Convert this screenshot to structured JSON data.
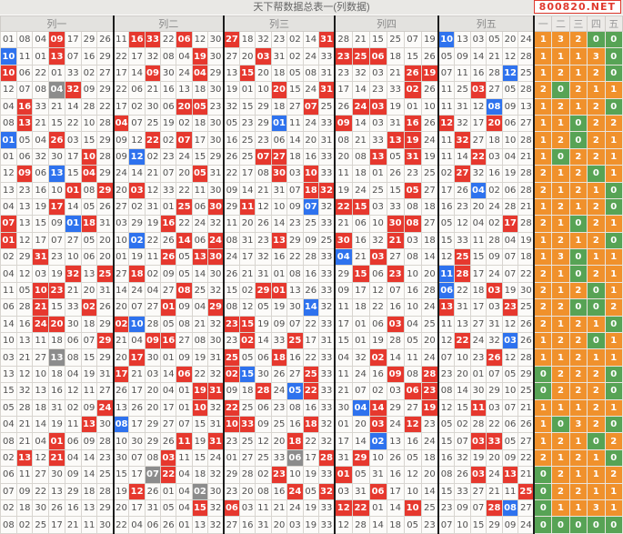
{
  "header": {
    "title": "天下帮数据总表一(列数据)",
    "badge": "800820.NET"
  },
  "column_groups": [
    "列一",
    "列二",
    "列三",
    "列四",
    "列五"
  ],
  "count_headers": [
    "一",
    "二",
    "三",
    "四",
    "五"
  ],
  "group_sizes": [
    7,
    7,
    7,
    6,
    6
  ],
  "legend": {
    "red_cell": "drawn red ball",
    "blue_cell": "drawn blue ball",
    "gray_cell": "number drawn as both red and blue ball",
    "orange_count": "non-zero column hit count",
    "green_count": "zero column hit count"
  },
  "colors": {
    "red": "#e6382e",
    "blue": "#2e72ee",
    "gray": "#8c8c8c",
    "orange": "#f0912c",
    "green": "#57a355",
    "badge_red": "#e03a2f"
  },
  "rows": [
    {
      "n": "01 08 04 09 17 29 26 11 16 33 22 06 12 30 27 18 32 23 02 14 31 28 21 15 25 07 19 10 13 03 05 20 24",
      "c": "wwwrwwwwrrwrwwrwwwwwrwwwwwwbwwwww",
      "t": [
        1,
        3,
        2,
        0,
        0
      ]
    },
    {
      "n": "10 11 01 13 07 16 29 22 17 32 08 04 19 30 27 20 03 31 02 24 33 23 25 06 18 15 26 05 09 14 21 12 28",
      "c": "bwwrwwwwwwwwrwwwrwwwwrrrwwwwwwwww",
      "t": [
        1,
        1,
        1,
        3,
        0
      ]
    },
    {
      "n": "10 06 22 01 33 02 27 17 14 09 30 24 04 29 13 15 20 18 05 08 31 23 32 03 21 26 19 07 11 16 28 12 25",
      "c": "rwwwwwwwwrwwrwwrwwwwwwwwwrrwwwwbw",
      "t": [
        1,
        2,
        1,
        2,
        0
      ]
    },
    {
      "n": "12 07 08 04 32 09 29 22 06 21 16 13 18 30 19 01 10 20 15 24 31 17 14 23 33 02 26 11 25 03 27 05 28",
      "c": "wwwgrwwwwwwwwwwwwrwwrwwwwrwwwrwww",
      "t": [
        2,
        0,
        2,
        1,
        1
      ]
    },
    {
      "n": "04 16 33 21 14 28 22 17 02 30 06 20 05 23 32 15 29 18 27 07 25 26 24 03 19 01 10 11 31 12 08 09 13",
      "c": "wrwwwwwwwwwrrwwwwwwrwwrrwwwwwwbww",
      "t": [
        1,
        2,
        1,
        2,
        0
      ]
    },
    {
      "n": "08 13 21 15 22 10 28 04 07 25 19 02 18 30 05 23 29 01 11 24 33 09 14 03 31 16 26 12 32 17 20 06 27",
      "c": "wrwwwwwrwwwwwwwwwbwwwrwwwrwrwwrww",
      "t": [
        1,
        1,
        0,
        2,
        2
      ]
    },
    {
      "n": "01 05 04 26 03 15 29 09 12 22 02 07 17 30 16 25 23 06 14 20 31 08 21 33 13 19 24 11 32 27 18 10 28",
      "c": "bwwrwwwwwrwrwwwwwwwwwwwwrrwwrwwww",
      "t": [
        1,
        2,
        0,
        2,
        1
      ]
    },
    {
      "n": "01 06 32 30 17 10 28 09 12 02 23 24 15 29 26 25 07 27 18 16 33 20 08 13 05 31 19 11 14 22 03 04 21",
      "c": "wwwwwrwwbwwwwwwwrrwwwwwrwrwwwrwww",
      "t": [
        1,
        0,
        2,
        2,
        1
      ]
    },
    {
      "n": "12 09 06 13 15 04 29 24 14 21 07 20 05 31 22 17 08 30 03 10 33 11 18 01 26 23 25 02 27 32 16 19 28",
      "c": "wrwbwrwwwwwwrwwwwrwrwwwwwwwwrwwww",
      "t": [
        2,
        1,
        2,
        0,
        1
      ]
    },
    {
      "n": "13 23 16 10 01 08 29 20 03 12 33 22 11 30 09 14 21 31 07 18 32 19 24 25 15 05 27 17 26 04 02 06 28",
      "c": "wwwwrwrwrwwwwwwwwwwrrwwwwrwwwbwww",
      "t": [
        2,
        1,
        2,
        1,
        0
      ]
    },
    {
      "n": "04 13 19 17 14 05 26 27 02 31 01 25 06 30 29 11 12 10 09 07 32 22 15 03 33 08 18 16 23 20 24 28 21",
      "c": "wwwrwwwwwwwrwrwrwwwbwrrwwwwwwwwww",
      "t": [
        1,
        2,
        1,
        2,
        0
      ]
    },
    {
      "n": "07 13 15 09 01 18 31 03 29 19 16 22 24 32 11 20 26 14 23 25 33 21 06 10 30 08 27 05 12 04 02 17 28",
      "c": "rwwwbrwwwwrwwwwwwwwwwwwwrrwwwwwrw",
      "t": [
        2,
        1,
        0,
        2,
        1
      ]
    },
    {
      "n": "01 12 17 07 27 05 20 10 02 22 26 14 06 24 08 31 23 13 29 09 25 30 16 32 21 03 18 15 33 11 28 04 19",
      "c": "rwwwwwwwbwwrwrwwwrwwwrwwrwwwwwwww",
      "t": [
        1,
        2,
        1,
        2,
        0
      ]
    },
    {
      "n": "02 29 31 23 10 06 20 01 19 11 26 05 13 30 24 17 32 16 22 28 33 04 21 03 27 08 14 12 25 15 09 07 18",
      "c": "wwrwwwwwwwrwrrwwwwwwwbwrwwwwrwwww",
      "t": [
        1,
        3,
        0,
        1,
        1
      ]
    },
    {
      "n": "04 12 03 19 32 13 25 27 18 02 09 05 14 30 26 21 31 01 08 16 33 29 15 06 23 10 20 11 28 17 24 07 22",
      "c": "wwwwrwrwrwwwwwwwwwwwwwrwrwwbrwwww",
      "t": [
        2,
        1,
        0,
        2,
        1
      ]
    },
    {
      "n": "11 05 10 23 21 20 31 14 24 04 27 08 25 32 15 02 29 01 13 26 33 09 17 12 07 16 28 06 22 18 03 19 30",
      "c": "wwrrwwwwwwwrwwwwrrwwwwwwwwwbwwrww",
      "t": [
        2,
        1,
        2,
        0,
        1
      ]
    },
    {
      "n": "06 28 21 15 33 02 26 20 07 27 01 09 04 29 08 12 05 19 30 14 32 11 18 22 16 10 24 13 31 17 03 23 25",
      "c": "wwrwwrwwwwrwwrwwwwwbwwwwwwwrwwwrw",
      "t": [
        2,
        2,
        0,
        0,
        2
      ]
    },
    {
      "n": "14 16 24 20 30 18 29 02 10 28 05 08 21 32 23 15 19 09 07 22 33 17 01 06 03 04 25 11 13 27 31 12 26",
      "c": "wwrrwwwrbwwwwwrrwwwwwwwwrwwwwwwww",
      "t": [
        2,
        1,
        2,
        1,
        0
      ]
    },
    {
      "n": "10 13 11 18 06 07 29 21 04 09 16 27 08 30 23 02 14 33 25 17 31 15 01 19 28 05 20 12 22 24 32 03 26",
      "c": "wwwwwwrwwrrwwwwrwwrwwwwwwwwwrwwbw",
      "t": [
        1,
        2,
        2,
        0,
        1
      ]
    },
    {
      "n": "03 21 27 13 08 15 29 20 17 30 01 09 19 31 25 05 06 18 16 22 33 04 32 02 14 11 24 07 10 23 26 12 28",
      "c": "wwwgwwwwrwwwwwrwwrwwwwwrwwwwwwrww",
      "t": [
        1,
        1,
        2,
        1,
        1
      ]
    },
    {
      "n": "13 12 10 18 04 19 31 17 21 03 14 06 22 32 02 15 30 26 27 25 33 11 24 16 09 08 28 23 20 01 07 05 29",
      "c": "wwwwwwwrwwwrwwrbwwwrwwwwrwrwwwwww",
      "t": [
        0,
        2,
        2,
        2,
        0
      ]
    },
    {
      "n": "15 32 13 16 12 11 27 26 17 20 04 01 19 31 09 18 28 24 05 22 33 21 07 02 03 06 23 08 14 30 29 10 25",
      "c": "wwwwwwwwwwwwrrwwrwbrwwwwwrrwwwwww",
      "t": [
        0,
        2,
        2,
        2,
        0
      ]
    },
    {
      "n": "05 28 18 31 02 09 24 13 26 20 17 01 10 32 22 25 06 23 08 16 33 30 04 14 29 27 19 12 15 11 03 07 21",
      "c": "wwwwwwrwwwwwrwrwwwwwwwbrwwrwwrwww",
      "t": [
        1,
        1,
        1,
        2,
        1
      ]
    },
    {
      "n": "04 21 14 19 11 13 30 08 17 29 27 07 15 31 10 33 09 25 16 18 32 01 20 03 24 12 23 05 02 28 22 06 26",
      "c": "wwwwwrwbwwwwwwrrwwwrwwwrwrwwwwwww",
      "t": [
        1,
        0,
        3,
        2,
        0
      ]
    },
    {
      "n": "08 21 04 01 06 09 28 10 30 29 26 11 19 31 23 25 12 20 18 22 32 17 14 02 13 16 24 15 07 03 33 05 27",
      "c": "wwwrwwwwwwwrwrwwwwrwwwwbwwwwwrrww",
      "t": [
        1,
        2,
        1,
        0,
        2
      ]
    },
    {
      "n": "02 13 12 21 04 14 23 30 07 08 03 11 15 24 01 27 25 33 06 17 28 31 29 10 26 05 18 16 32 19 20 09 22",
      "c": "wrwrwwwwwwrwwwwwwwgwrwrwwwwwwwwww",
      "t": [
        2,
        1,
        2,
        1,
        0
      ]
    },
    {
      "n": "06 11 27 30 09 14 25 15 17 07 22 04 18 32 29 28 02 23 10 19 33 01 05 31 16 12 20 08 26 03 24 13 21",
      "c": "wwwwwwwwwgrwwwwwwrwwwrwwwwwwwrwrw",
      "t": [
        0,
        2,
        1,
        1,
        2
      ]
    },
    {
      "n": "07 09 22 13 29 18 28 19 12 26 01 04 02 30 23 20 08 16 24 05 32 03 31 06 17 10 14 15 33 27 21 11 25",
      "c": "wwwwwwwwrwwwgwwwwwrwrwwrwwwwwwwwr",
      "t": [
        0,
        2,
        2,
        1,
        1
      ]
    },
    {
      "n": "02 18 30 26 16 13 29 20 17 31 05 04 15 32 06 03 11 21 24 19 33 12 22 01 14 10 25 23 09 07 28 08 27",
      "c": "wwwwwwwwwwwwrwrwwwwwwrrwwrwwwwrbw",
      "t": [
        0,
        1,
        1,
        3,
        1
      ]
    },
    {
      "n": "08 02 25 17 21 11 30 22 04 06 26 01 13 32 27 16 31 20 03 19 33 12 28 14 18 05 23 07 10 15 29 09 24",
      "c": "wwwwwwwwwwwwwwwwwwwwwwwwwwwwwwwww",
      "t": [
        0,
        0,
        0,
        0,
        0
      ]
    }
  ]
}
